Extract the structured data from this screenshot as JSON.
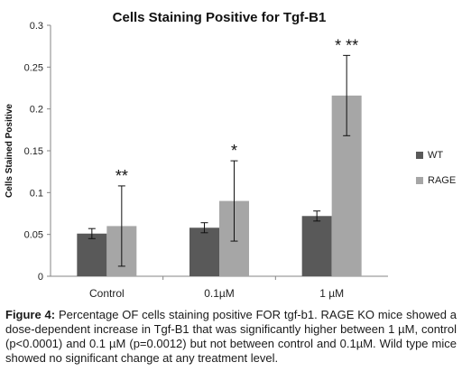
{
  "chart_data": {
    "type": "bar",
    "title": "Cells Staining Positive for Tgf-B1",
    "xlabel": "",
    "ylabel": "Cells Stained Positive",
    "ylim": [
      0,
      0.3
    ],
    "yticks": [
      "0",
      "0.05",
      "0.1",
      "0.15",
      "0.2",
      "0.25",
      "0.3"
    ],
    "categories": [
      "Control",
      "0.1µM",
      "1 µM"
    ],
    "series": [
      {
        "name": "WT",
        "color": "#595959",
        "values": [
          0.051,
          0.058,
          0.072
        ],
        "errors": [
          0.006,
          0.006,
          0.006
        ],
        "annotations": [
          "",
          "",
          ""
        ]
      },
      {
        "name": "RAGE",
        "color": "#a6a6a6",
        "values": [
          0.06,
          0.09,
          0.216
        ],
        "errors": [
          0.048,
          0.048,
          0.048
        ],
        "annotations": [
          "**",
          "*",
          "* **"
        ]
      }
    ],
    "grid": false,
    "legend": "right"
  },
  "caption": {
    "label": "Figure 4:",
    "text": " Percentage OF cells staining positive FOR tgf-b1. RAGE KO mice showed a dose-dependent increase in Tgf-B1 that was significantly higher between 1 µM, control (p<0.0001) and 0.1 µM (p=0.0012) but not between control and 0.1µM. Wild type mice showed no significant change at any treatment level."
  }
}
